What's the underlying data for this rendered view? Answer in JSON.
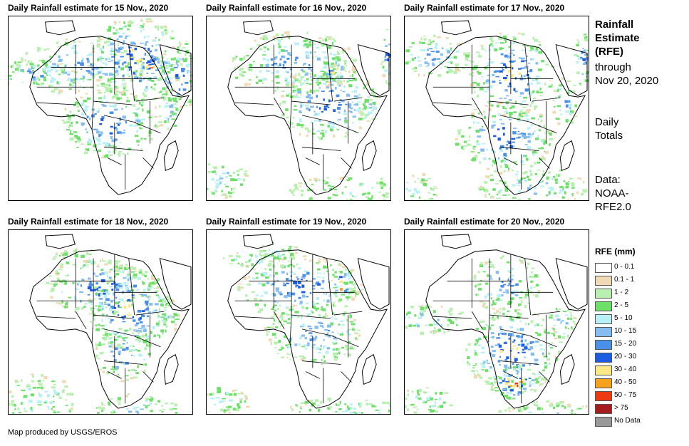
{
  "panels": [
    {
      "title": "Daily Rainfall estimate for 15 Nov., 2020",
      "seed": 15,
      "rain": [
        [
          100,
          70,
          90,
          40,
          5
        ],
        [
          180,
          60,
          70,
          60,
          7
        ],
        [
          140,
          150,
          70,
          50,
          6
        ],
        [
          240,
          85,
          30,
          50,
          6
        ],
        [
          225,
          130,
          18,
          30,
          4
        ],
        [
          35,
          80,
          60,
          20,
          5
        ],
        [
          200,
          72,
          20,
          22,
          9
        ]
      ]
    },
    {
      "title": "Daily Rainfall estimate for 16 Nov., 2020",
      "seed": 16,
      "rain": [
        [
          120,
          65,
          90,
          45,
          5
        ],
        [
          170,
          120,
          70,
          55,
          6
        ],
        [
          200,
          245,
          90,
          20,
          3
        ],
        [
          20,
          230,
          40,
          25,
          4
        ],
        [
          180,
          75,
          20,
          20,
          7
        ],
        [
          255,
          55,
          10,
          40,
          6
        ],
        [
          230,
          130,
          15,
          20,
          4
        ]
      ]
    },
    {
      "title": "Daily Rainfall estimate for 17 Nov., 2020",
      "seed": 17,
      "rain": [
        [
          150,
          80,
          60,
          60,
          7
        ],
        [
          140,
          170,
          70,
          50,
          6
        ],
        [
          180,
          240,
          80,
          28,
          4
        ],
        [
          40,
          55,
          50,
          30,
          5
        ],
        [
          250,
          60,
          12,
          40,
          6
        ],
        [
          225,
          120,
          18,
          35,
          5
        ],
        [
          15,
          250,
          30,
          30,
          3
        ]
      ]
    },
    {
      "title": "Daily Rainfall estimate for 18 Nov., 2020",
      "seed": 18,
      "rain": [
        [
          130,
          80,
          80,
          40,
          6
        ],
        [
          170,
          110,
          60,
          60,
          7
        ],
        [
          160,
          175,
          40,
          40,
          5
        ],
        [
          40,
          240,
          50,
          40,
          3
        ],
        [
          180,
          255,
          60,
          25,
          4
        ],
        [
          225,
          120,
          15,
          25,
          4
        ],
        [
          100,
          40,
          40,
          15,
          3
        ]
      ]
    },
    {
      "title": "Daily Rainfall estimate for 19 Nov., 2020",
      "seed": 19,
      "rain": [
        [
          130,
          80,
          90,
          45,
          6
        ],
        [
          150,
          145,
          70,
          45,
          5
        ],
        [
          190,
          75,
          15,
          25,
          9
        ],
        [
          200,
          255,
          90,
          20,
          3
        ],
        [
          20,
          240,
          40,
          20,
          3
        ],
        [
          100,
          30,
          30,
          15,
          3
        ],
        [
          60,
          40,
          40,
          10,
          3
        ]
      ]
    },
    {
      "title": "Daily Rainfall estimate for 20 Nov., 2020",
      "seed": 20,
      "rain": [
        [
          150,
          170,
          70,
          60,
          7
        ],
        [
          155,
          215,
          35,
          25,
          9
        ],
        [
          140,
          75,
          50,
          40,
          5
        ],
        [
          30,
          125,
          60,
          20,
          4
        ],
        [
          200,
          265,
          80,
          25,
          4
        ],
        [
          30,
          240,
          40,
          20,
          3
        ],
        [
          220,
          130,
          20,
          25,
          4
        ]
      ]
    }
  ],
  "side": {
    "title_lines": [
      "Rainfall",
      "Estimate",
      "(RFE)"
    ],
    "through_lines": [
      "through",
      "Nov 20, 2020"
    ],
    "totals_lines": [
      "Daily",
      "Totals"
    ],
    "source_lines": [
      "Data:",
      "NOAA-",
      "RFE2.0"
    ]
  },
  "legend": {
    "title": "RFE (mm)",
    "items": [
      {
        "label": "0 - 0.1",
        "color": "#ffffff"
      },
      {
        "label": "0.1 - 1",
        "color": "#f0d9b5"
      },
      {
        "label": "1 - 2",
        "color": "#b8f0b0"
      },
      {
        "label": "2 - 5",
        "color": "#6ee06a"
      },
      {
        "label": "5 - 10",
        "color": "#b8f0f5"
      },
      {
        "label": "10 - 15",
        "color": "#86bdf0"
      },
      {
        "label": "15 - 20",
        "color": "#4a8fe8"
      },
      {
        "label": "20 - 30",
        "color": "#1c5ce0"
      },
      {
        "label": "30 - 40",
        "color": "#fce884"
      },
      {
        "label": "40 - 50",
        "color": "#f6a21e"
      },
      {
        "label": "50 - 75",
        "color": "#ec3b12"
      },
      {
        "label": "> 75",
        "color": "#a51e1e"
      },
      {
        "label": "No Data",
        "color": "#999999"
      }
    ]
  },
  "credit": "Map produced by USGS/EROS"
}
